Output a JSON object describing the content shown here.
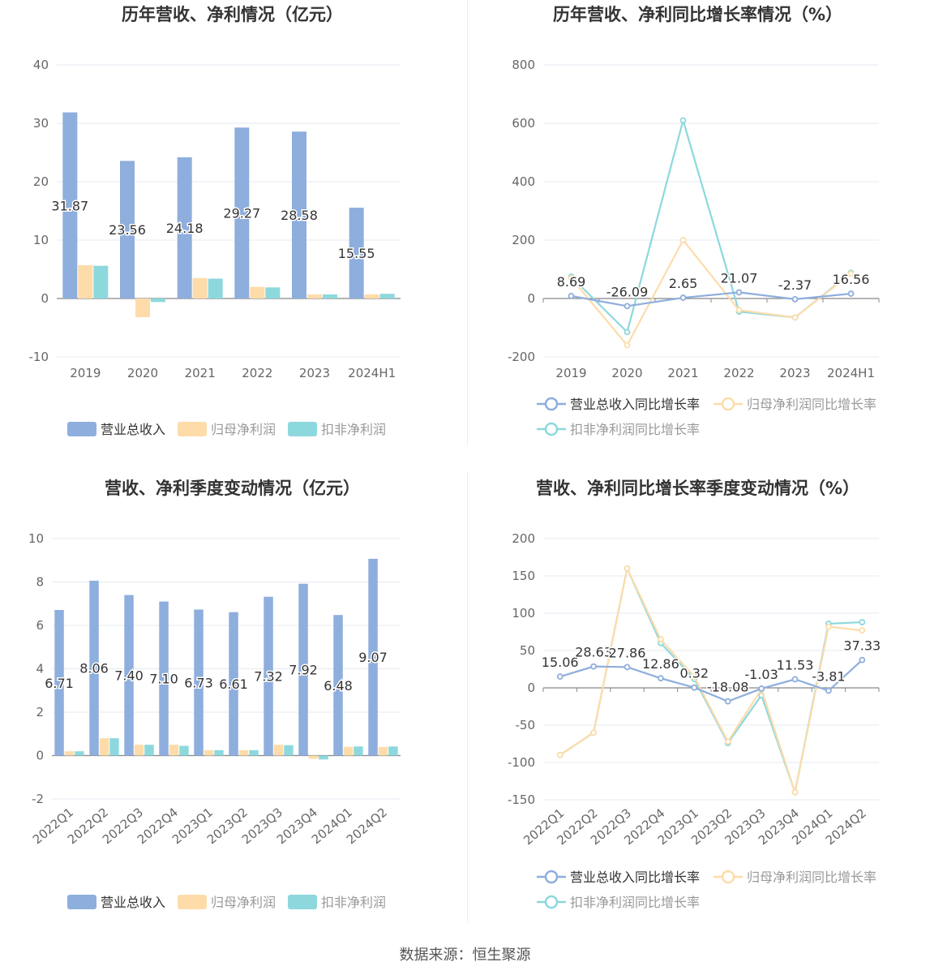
{
  "charts": [
    {
      "type": "bar",
      "title": "历年营收、净利情况（亿元）",
      "categories": [
        "2019",
        "2020",
        "2021",
        "2022",
        "2023",
        "2024H1"
      ],
      "ylim": [
        -10,
        40
      ],
      "yticks": [
        -10,
        0,
        10,
        20,
        30,
        40
      ],
      "series": [
        {
          "name": "营业总收入",
          "color": "#8eaedd",
          "values": [
            31.87,
            23.56,
            24.18,
            29.27,
            28.58,
            15.55
          ],
          "labels": [
            "31.87",
            "23.56",
            "24.18",
            "29.27",
            "28.58",
            "15.55"
          ]
        },
        {
          "name": "归母净利润",
          "color": "#fddcaa",
          "values": [
            5.7,
            -3.2,
            3.5,
            2.0,
            0.7,
            0.7
          ]
        },
        {
          "name": "扣非净利润",
          "color": "#8dd8dd",
          "values": [
            5.6,
            -0.6,
            3.4,
            1.9,
            0.7,
            0.8
          ]
        }
      ]
    },
    {
      "type": "line",
      "title": "历年营收、净利同比增长率情况（%）",
      "categories": [
        "2019",
        "2020",
        "2021",
        "2022",
        "2023",
        "2024H1"
      ],
      "ylim": [
        -200,
        800
      ],
      "yticks": [
        -200,
        0,
        200,
        400,
        600,
        800
      ],
      "series": [
        {
          "name": "营业总收入同比增长率",
          "color": "#8eaedd",
          "values": [
            8.69,
            -26.09,
            2.65,
            21.07,
            -2.37,
            16.56
          ],
          "labels": [
            "8.69",
            "-26.09",
            "2.65",
            "21.07",
            "-2.37",
            "16.56"
          ]
        },
        {
          "name": "归母净利润同比增长率",
          "color": "#fddcaa",
          "values": [
            70,
            -160,
            200,
            -40,
            -65,
            85
          ]
        },
        {
          "name": "扣非净利润同比增长率",
          "color": "#8dd8dd",
          "values": [
            75,
            -115,
            610,
            -45,
            -65,
            88
          ]
        }
      ]
    },
    {
      "type": "bar",
      "title": "营收、净利季度变动情况（亿元）",
      "categories": [
        "2022Q1",
        "2022Q2",
        "2022Q3",
        "2022Q4",
        "2023Q1",
        "2023Q2",
        "2023Q3",
        "2023Q4",
        "2024Q1",
        "2024Q2"
      ],
      "ylim": [
        -2,
        10
      ],
      "yticks": [
        -2,
        0,
        2,
        4,
        6,
        8,
        10
      ],
      "series": [
        {
          "name": "营业总收入",
          "color": "#8eaedd",
          "values": [
            6.71,
            8.06,
            7.4,
            7.1,
            6.73,
            6.61,
            7.32,
            7.92,
            6.48,
            9.07
          ],
          "labels": [
            "6.71",
            "8.06",
            "7.40",
            "7.10",
            "6.73",
            "6.61",
            "7.32",
            "7.92",
            "6.48",
            "9.07"
          ]
        },
        {
          "name": "归母净利润",
          "color": "#fddcaa",
          "values": [
            0.2,
            0.8,
            0.5,
            0.5,
            0.25,
            0.25,
            0.5,
            -0.15,
            0.4,
            0.4
          ]
        },
        {
          "name": "扣非净利润",
          "color": "#8dd8dd",
          "values": [
            0.2,
            0.8,
            0.5,
            0.45,
            0.25,
            0.25,
            0.48,
            -0.18,
            0.42,
            0.42
          ]
        }
      ]
    },
    {
      "type": "line",
      "title": "营收、净利同比增长率季度变动情况（%）",
      "categories": [
        "2022Q1",
        "2022Q2",
        "2022Q3",
        "2022Q4",
        "2023Q1",
        "2023Q2",
        "2023Q3",
        "2023Q4",
        "2024Q1",
        "2024Q2"
      ],
      "ylim": [
        -150,
        200
      ],
      "yticks": [
        -150,
        -100,
        -50,
        0,
        50,
        100,
        150,
        200
      ],
      "series": [
        {
          "name": "营业总收入同比增长率",
          "color": "#8eaedd",
          "values": [
            15.06,
            28.63,
            27.86,
            12.86,
            0.32,
            -18.08,
            -1.03,
            11.53,
            -3.81,
            37.33
          ],
          "labels": [
            "15.06",
            "28.63",
            "27.86",
            "12.86",
            "0.32",
            "-18.08",
            "-1.03",
            "11.53",
            "-3.81",
            "37.33"
          ]
        },
        {
          "name": "归母净利润同比增长率",
          "color": "#fddcaa",
          "values": [
            -90,
            -60,
            160,
            65,
            15,
            -72,
            -2,
            -140,
            82,
            77
          ]
        },
        {
          "name": "扣非净利润同比增长率",
          "color": "#8dd8dd",
          "values": [
            -90,
            -60,
            160,
            60,
            12,
            -74,
            -10,
            -140,
            86,
            88
          ]
        }
      ]
    }
  ],
  "source": "数据来源：恒生聚源"
}
